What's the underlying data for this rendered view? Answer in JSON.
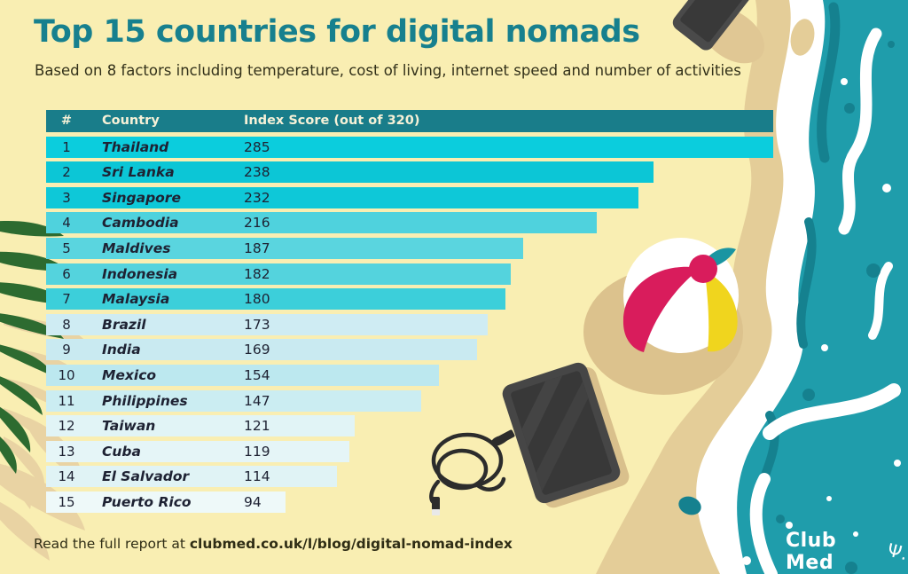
{
  "header": {
    "title": "Top 15 countries for digital nomads",
    "subtitle": "Based on 8 factors including temperature, cost of living, internet speed and number of activities"
  },
  "table": {
    "rank_header": "#",
    "country_header": "Country",
    "score_header": "Index Score (out of 320)"
  },
  "chart_data": {
    "type": "bar",
    "title": "Top 15 countries for digital nomads",
    "subtitle": "Based on 8 factors including temperature, cost of living, internet speed and number of activities",
    "categories": [
      "Thailand",
      "Sri Lanka",
      "Singapore",
      "Cambodia",
      "Maldives",
      "Indonesia",
      "Malaysia",
      "Brazil",
      "India",
      "Mexico",
      "Philippines",
      "Taiwan",
      "Cuba",
      "El Salvador",
      "Puerto Rico"
    ],
    "values": [
      285,
      238,
      232,
      216,
      187,
      182,
      180,
      173,
      169,
      154,
      147,
      121,
      119,
      114,
      94
    ],
    "ranks": [
      1,
      2,
      3,
      4,
      5,
      6,
      7,
      8,
      9,
      10,
      11,
      12,
      13,
      14,
      15
    ],
    "max_score": 320,
    "bar_scale_max": 285,
    "orientation": "horizontal",
    "bar_colors": [
      "#0bcddd",
      "#0cc6d6",
      "#0ec8d8",
      "#4fd2dd",
      "#5ad5df",
      "#54d3dd",
      "#3ccfda",
      "#cfecf3",
      "#c9eaf1",
      "#bce8ef",
      "#cbedf2",
      "#e1f4f6",
      "#e5f5f7",
      "#e0f3f5",
      "#eef9f9"
    ]
  },
  "footer": {
    "prefix": "Read the full report at ",
    "url": "clubmed.co.uk/l/blog/digital-nomad-index"
  },
  "logo": {
    "name": "Club Med",
    "trident": "Ψ."
  },
  "colors": {
    "background_sand": "#f9eeb2",
    "title_teal": "#17808e",
    "header_row_teal": "#197d8a",
    "ocean_teal": "#1f9dab",
    "ocean_dark_teal": "#15818f",
    "wet_sand": "#e4cd98",
    "foam_white": "#ffffff",
    "palm_green": "#2d6b30",
    "ball_crimson": "#d91c5c",
    "ball_yellow": "#f0d51e",
    "text_dark": "#1e2233"
  }
}
